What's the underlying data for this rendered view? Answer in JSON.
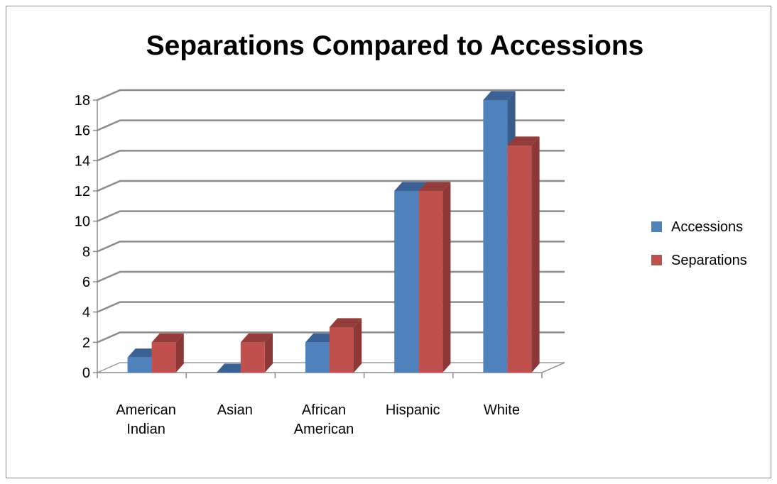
{
  "chart_data": {
    "type": "bar",
    "style": "3d-clustered-column",
    "title": "Separations Compared to Accessions",
    "xlabel": "",
    "ylabel": "",
    "categories": [
      [
        "American",
        "Indian"
      ],
      [
        "Asian"
      ],
      [
        "African",
        "American"
      ],
      [
        "Hispanic"
      ],
      [
        "White"
      ]
    ],
    "series": [
      {
        "name": "Accessions",
        "values": [
          1,
          0,
          2,
          12,
          18
        ],
        "color": "#4f81bd",
        "side_color": "#385d8a",
        "top_color": "#3a6193"
      },
      {
        "name": "Separations",
        "values": [
          2,
          2,
          3,
          12,
          15
        ],
        "color": "#c0504d",
        "side_color": "#8c3836",
        "top_color": "#943c3a"
      }
    ],
    "ylim": [
      0,
      18
    ],
    "yticks": [
      0,
      2,
      4,
      6,
      8,
      10,
      12,
      14,
      16,
      18
    ],
    "grid": true,
    "legend": "right"
  }
}
